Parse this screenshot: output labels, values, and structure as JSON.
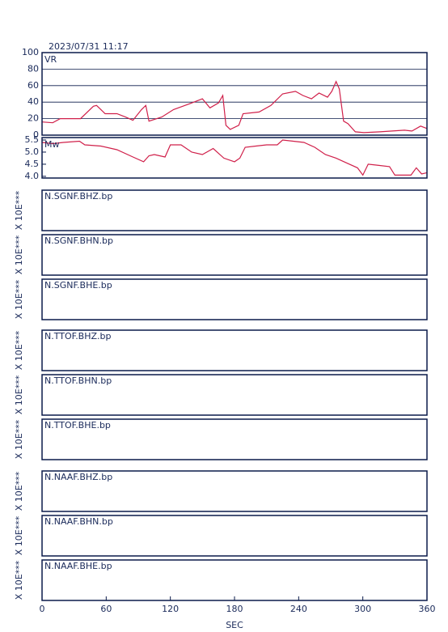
{
  "title": "2023/07/31 11:17",
  "chart_data": [
    {
      "type": "line",
      "label": "VR",
      "color": "#d0204a",
      "grid": true,
      "xlim": [
        0,
        360
      ],
      "ylim": [
        0,
        100
      ],
      "yticks": [
        0,
        20,
        40,
        60,
        80,
        100
      ],
      "x": [
        0,
        10,
        17,
        36,
        48,
        51,
        59,
        70,
        78,
        85,
        93,
        97,
        100,
        112,
        123,
        138,
        150,
        157,
        165,
        169,
        172,
        176,
        184,
        188,
        203,
        214,
        225,
        237,
        244,
        252,
        259,
        267,
        271,
        275,
        278,
        282,
        286,
        293,
        301,
        316,
        339,
        346,
        354,
        360
      ],
      "values": [
        16,
        15,
        20,
        20,
        35,
        36,
        26,
        26,
        22,
        18,
        31,
        36,
        17,
        22,
        31,
        38,
        44,
        33,
        39,
        48,
        12,
        7,
        12,
        26,
        28,
        36,
        50,
        53,
        48,
        44,
        51,
        46,
        53,
        65,
        56,
        17,
        14,
        4,
        3,
        4,
        6,
        5,
        11,
        8
      ]
    },
    {
      "type": "line",
      "label": "Mw",
      "color": "#d0204a",
      "grid": false,
      "xlim": [
        0,
        360
      ],
      "ylim": [
        3.93,
        5.6
      ],
      "yticks": [
        {
          "value": 4,
          "label": "4.0"
        },
        4.5,
        {
          "value": 5,
          "label": "5.0"
        },
        5.5
      ],
      "x": [
        0,
        10,
        20,
        35,
        40,
        55,
        70,
        85,
        95,
        100,
        105,
        115,
        120,
        130,
        140,
        150,
        160,
        170,
        180,
        185,
        190,
        200,
        210,
        220,
        225,
        235,
        245,
        255,
        265,
        275,
        285,
        295,
        300,
        305,
        315,
        325,
        330,
        345,
        350,
        355,
        360
      ],
      "values": [
        5.4,
        5.35,
        5.4,
        5.45,
        5.3,
        5.25,
        5.1,
        4.8,
        4.6,
        4.85,
        4.9,
        4.8,
        5.3,
        5.3,
        5.0,
        4.9,
        5.15,
        4.75,
        4.6,
        4.75,
        5.2,
        5.25,
        5.3,
        5.3,
        5.5,
        5.45,
        5.4,
        5.2,
        4.9,
        4.75,
        4.55,
        4.35,
        4.05,
        4.5,
        4.45,
        4.4,
        4.05,
        4.05,
        4.35,
        4.1,
        4.15
      ]
    }
  ],
  "x_axis": {
    "xlim": [
      0,
      360
    ],
    "xticks": [
      0,
      60,
      120,
      180,
      240,
      300,
      360
    ],
    "xlabel": "SEC"
  },
  "traces": [
    {
      "label": "N.SGNF.BHZ.bp",
      "scale_label": "X 10E***"
    },
    {
      "label": "N.SGNF.BHN.bp",
      "scale_label": "X 10E***"
    },
    {
      "label": "N.SGNF.BHE.bp",
      "scale_label": "X 10E***"
    },
    {
      "label": "N.TTOF.BHZ.bp",
      "scale_label": "X 10E***"
    },
    {
      "label": "N.TTOF.BHN.bp",
      "scale_label": "X 10E***"
    },
    {
      "label": "N.TTOF.BHE.bp",
      "scale_label": "X 10E***"
    },
    {
      "label": "N.NAAF.BHZ.bp",
      "scale_label": "X 10E***"
    },
    {
      "label": "N.NAAF.BHN.bp",
      "scale_label": "X 10E***"
    },
    {
      "label": "N.NAAF.BHE.bp",
      "scale_label": "X 10E***"
    }
  ]
}
